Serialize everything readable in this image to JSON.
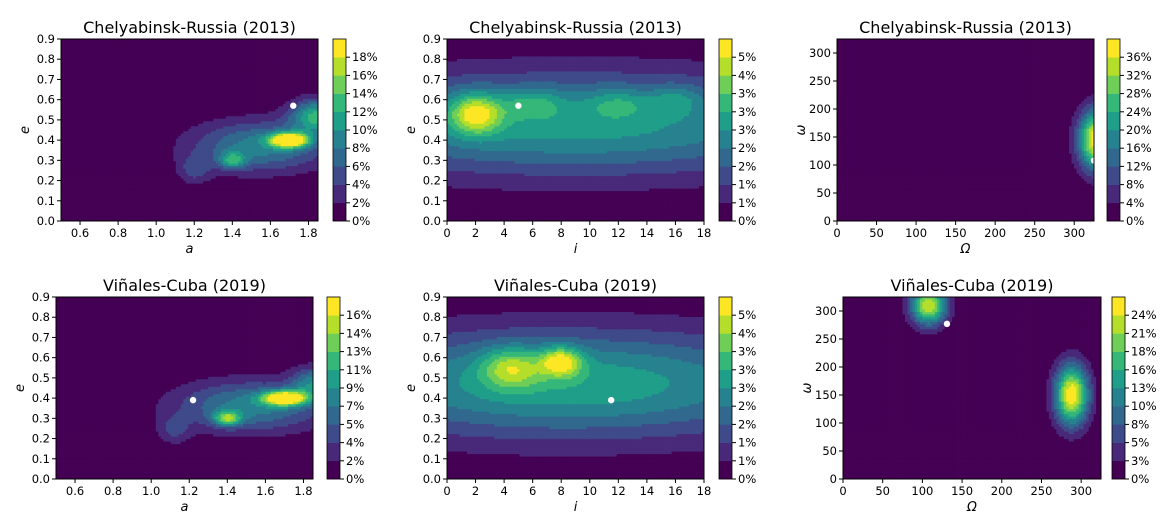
{
  "figure": {
    "colormap": [
      "#440154",
      "#482878",
      "#3e4a89",
      "#31688e",
      "#26828e",
      "#1f9e89",
      "#35b779",
      "#6ece58",
      "#b5de2b",
      "#fde725"
    ],
    "marker_color": "#ffffff"
  },
  "chart_data": [
    {
      "type": "heatmap",
      "title": "Chelyabinsk-Russia (2013)",
      "xlabel": "a",
      "ylabel": "e",
      "xlim": [
        0.5,
        1.85
      ],
      "ylim": [
        0,
        0.9
      ],
      "xticks": [
        "0.6",
        "0.8",
        "1.0",
        "1.2",
        "1.4",
        "1.6",
        "1.8"
      ],
      "yticks": [
        "0.0",
        "0.1",
        "0.2",
        "0.3",
        "0.4",
        "0.5",
        "0.6",
        "0.7",
        "0.8",
        "0.9"
      ],
      "colorbar_ticks": [
        "0%",
        "2%",
        "4%",
        "6%",
        "8%",
        "10%",
        "12%",
        "14%",
        "16%",
        "18%"
      ],
      "blobs": [
        {
          "x": 1.55,
          "y": 0.37,
          "sx": 0.26,
          "sy": 0.09,
          "a": 0.45
        },
        {
          "x": 1.4,
          "y": 0.3,
          "sx": 0.05,
          "sy": 0.03,
          "a": 0.4
        },
        {
          "x": 1.7,
          "y": 0.4,
          "sx": 0.07,
          "sy": 0.025,
          "a": 1.0
        },
        {
          "x": 1.85,
          "y": 0.52,
          "sx": 0.1,
          "sy": 0.06,
          "a": 0.6
        },
        {
          "x": 1.2,
          "y": 0.25,
          "sx": 0.06,
          "sy": 0.05,
          "a": 0.2
        }
      ],
      "point": {
        "x": 1.72,
        "y": 0.57
      }
    },
    {
      "type": "heatmap",
      "title": "Chelyabinsk-Russia (2013)",
      "xlabel": "i",
      "ylabel": "e",
      "xlim": [
        0,
        18
      ],
      "ylim": [
        0,
        0.9
      ],
      "xticks": [
        "0",
        "2",
        "4",
        "6",
        "8",
        "10",
        "12",
        "14",
        "16",
        "18"
      ],
      "yticks": [
        "0.0",
        "0.1",
        "0.2",
        "0.3",
        "0.4",
        "0.5",
        "0.6",
        "0.7",
        "0.8",
        "0.9"
      ],
      "colorbar_ticks": [
        "0%",
        "1%",
        "1%",
        "2%",
        "2%",
        "3%",
        "3%",
        "3%",
        "4%",
        "5%"
      ],
      "blobs": [
        {
          "x": 9,
          "y": 0.48,
          "sx": 14,
          "sy": 0.18,
          "a": 0.55
        },
        {
          "x": 2,
          "y": 0.53,
          "sx": 1.3,
          "sy": 0.07,
          "a": 0.55
        },
        {
          "x": 6,
          "y": 0.58,
          "sx": 1.4,
          "sy": 0.05,
          "a": 0.22
        },
        {
          "x": 12,
          "y": 0.58,
          "sx": 1.5,
          "sy": 0.05,
          "a": 0.18
        },
        {
          "x": 16,
          "y": 0.6,
          "sx": 1.2,
          "sy": 0.05,
          "a": 0.18
        }
      ],
      "point": {
        "x": 5,
        "y": 0.57
      }
    },
    {
      "type": "heatmap",
      "title": "Chelyabinsk-Russia (2013)",
      "xlabel": "Ω",
      "ylabel": "ω",
      "xlim": [
        0,
        325
      ],
      "ylim": [
        0,
        325
      ],
      "xticks": [
        "0",
        "50",
        "100",
        "150",
        "200",
        "250",
        "300"
      ],
      "yticks": [
        "0",
        "50",
        "100",
        "150",
        "200",
        "250",
        "300"
      ],
      "colorbar_ticks": [
        "0%",
        "4%",
        "8%",
        "12%",
        "16%",
        "20%",
        "24%",
        "28%",
        "32%",
        "36%"
      ],
      "blobs": [
        {
          "x": 328,
          "y": 145,
          "sx": 16,
          "sy": 38,
          "a": 1.0
        }
      ],
      "point": {
        "x": 325,
        "y": 108
      }
    },
    {
      "type": "heatmap",
      "title": "Viñales-Cuba (2019)",
      "xlabel": "a",
      "ylabel": "e",
      "xlim": [
        0.5,
        1.85
      ],
      "ylim": [
        0,
        0.9
      ],
      "xticks": [
        "0.6",
        "0.8",
        "1.0",
        "1.2",
        "1.4",
        "1.6",
        "1.8"
      ],
      "yticks": [
        "0.0",
        "0.1",
        "0.2",
        "0.3",
        "0.4",
        "0.5",
        "0.6",
        "0.7",
        "0.8",
        "0.9"
      ],
      "colorbar_ticks": [
        "0%",
        "2%",
        "4%",
        "5%",
        "7%",
        "9%",
        "11%",
        "13%",
        "14%",
        "16%"
      ],
      "blobs": [
        {
          "x": 1.52,
          "y": 0.36,
          "sx": 0.28,
          "sy": 0.09,
          "a": 0.45
        },
        {
          "x": 1.4,
          "y": 0.3,
          "sx": 0.05,
          "sy": 0.025,
          "a": 0.55
        },
        {
          "x": 1.7,
          "y": 0.4,
          "sx": 0.08,
          "sy": 0.025,
          "a": 0.95
        },
        {
          "x": 1.85,
          "y": 0.47,
          "sx": 0.08,
          "sy": 0.06,
          "a": 0.4
        },
        {
          "x": 1.12,
          "y": 0.24,
          "sx": 0.06,
          "sy": 0.05,
          "a": 0.18
        }
      ],
      "point": {
        "x": 1.22,
        "y": 0.39
      }
    },
    {
      "type": "heatmap",
      "title": "Viñales-Cuba (2019)",
      "xlabel": "i",
      "ylabel": "e",
      "xlim": [
        0,
        18
      ],
      "ylim": [
        0,
        0.9
      ],
      "xticks": [
        "0",
        "2",
        "4",
        "6",
        "8",
        "10",
        "12",
        "14",
        "16",
        "18"
      ],
      "yticks": [
        "0.0",
        "0.1",
        "0.2",
        "0.3",
        "0.4",
        "0.5",
        "0.6",
        "0.7",
        "0.8",
        "0.9"
      ],
      "colorbar_ticks": [
        "0%",
        "1%",
        "1%",
        "2%",
        "2%",
        "3%",
        "3%",
        "3%",
        "4%",
        "5%"
      ],
      "blobs": [
        {
          "x": 8.5,
          "y": 0.47,
          "sx": 13,
          "sy": 0.19,
          "a": 0.58
        },
        {
          "x": 4.5,
          "y": 0.55,
          "sx": 1.5,
          "sy": 0.07,
          "a": 0.4
        },
        {
          "x": 8,
          "y": 0.58,
          "sx": 1.0,
          "sy": 0.05,
          "a": 0.55
        }
      ],
      "point": {
        "x": 11.5,
        "y": 0.39
      }
    },
    {
      "type": "heatmap",
      "title": "Viñales-Cuba (2019)",
      "xlabel": "Ω",
      "ylabel": "ω",
      "xlim": [
        0,
        325
      ],
      "ylim": [
        0,
        325
      ],
      "xticks": [
        "0",
        "50",
        "100",
        "150",
        "200",
        "250",
        "300"
      ],
      "yticks": [
        "0",
        "50",
        "100",
        "150",
        "200",
        "250",
        "300"
      ],
      "colorbar_ticks": [
        "0%",
        "3%",
        "5%",
        "8%",
        "10%",
        "13%",
        "16%",
        "18%",
        "21%",
        "24%"
      ],
      "blobs": [
        {
          "x": 288,
          "y": 150,
          "sx": 15,
          "sy": 38,
          "a": 1.0
        },
        {
          "x": 108,
          "y": 310,
          "sx": 16,
          "sy": 25,
          "a": 0.9
        },
        {
          "x": 106,
          "y": -5,
          "sx": 10,
          "sy": 10,
          "a": 0.12
        }
      ],
      "point": {
        "x": 131,
        "y": 277
      }
    }
  ]
}
